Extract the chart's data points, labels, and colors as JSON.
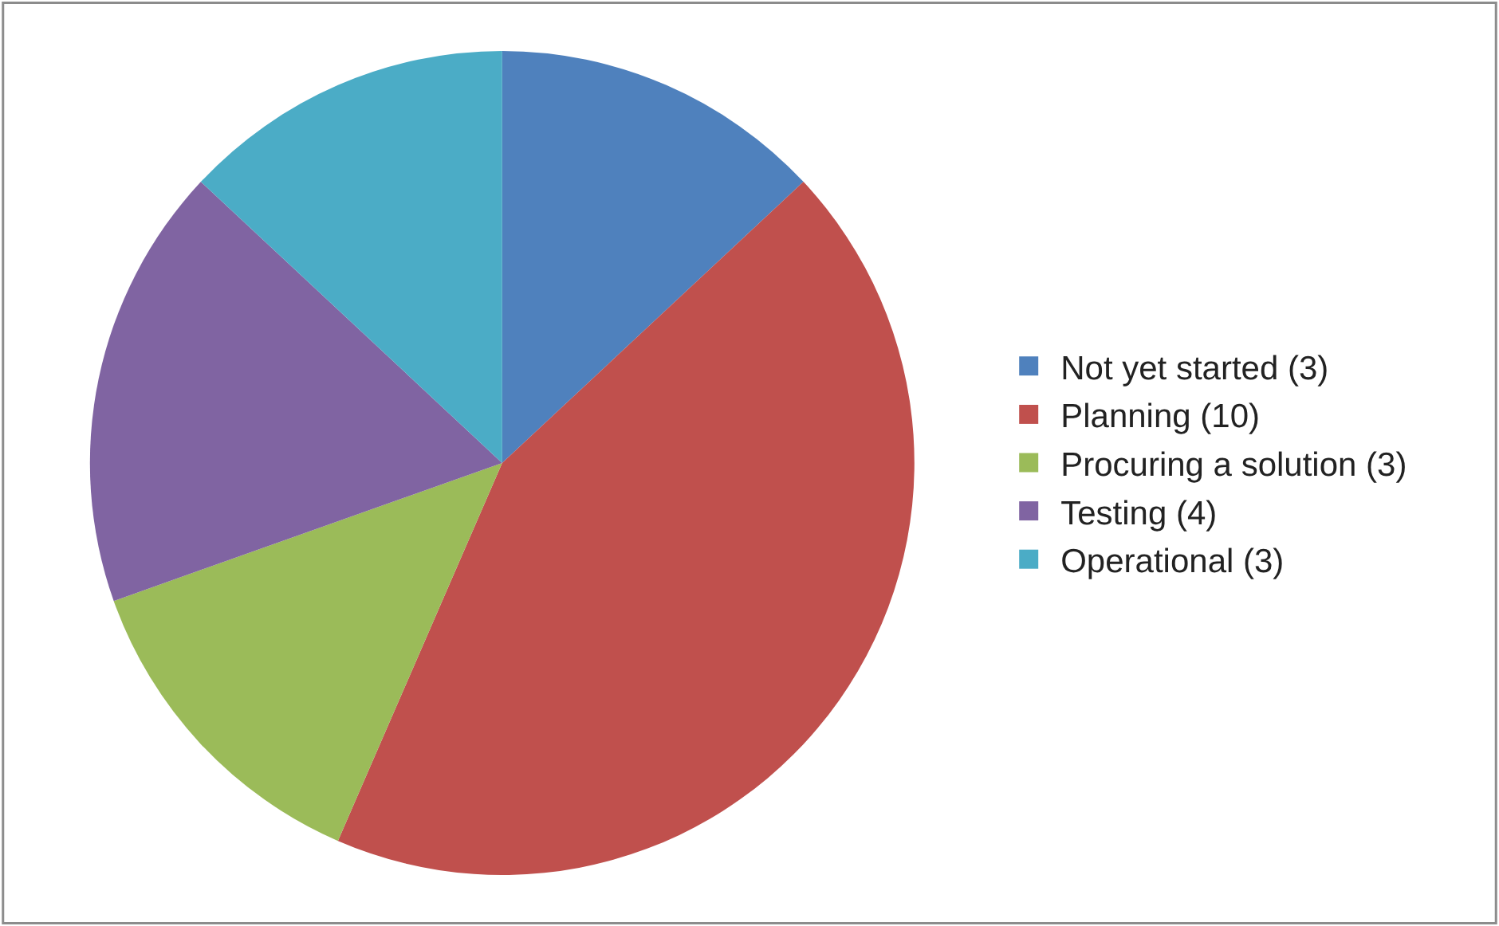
{
  "chart_data": {
    "type": "pie",
    "categories": [
      "Not yet started (3)",
      "Planning (10)",
      "Procuring a solution (3)",
      "Testing (4)",
      "Operational (3)"
    ],
    "values": [
      3,
      10,
      3,
      4,
      3
    ],
    "colors": [
      "#4f81bd",
      "#c0504d",
      "#9bbb59",
      "#8064a2",
      "#4bacc6"
    ],
    "legend": "right"
  }
}
